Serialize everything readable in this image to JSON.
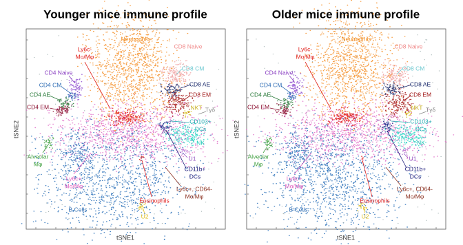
{
  "panels": [
    {
      "title": "Younger mice immune profile",
      "x_label": "tSNE1",
      "y_label": "tSNE2",
      "labels": [
        {
          "lines": [
            "Neutrophils"
          ]
        },
        {
          "lines": [
            "Ly6c-",
            "Mo/Mφ"
          ]
        },
        {
          "lines": [
            "CD8 Naive"
          ]
        },
        {
          "lines": [
            "CD8 CM"
          ]
        },
        {
          "lines": [
            "CD4 Naive"
          ]
        },
        {
          "lines": [
            "CD4 CM"
          ]
        },
        {
          "lines": [
            "CD8 AE"
          ]
        },
        {
          "lines": [
            "CD4 AE"
          ]
        },
        {
          "lines": [
            "CD8 EM"
          ]
        },
        {
          "lines": [
            "CD4 EM"
          ]
        },
        {
          "lines": [
            "NKT"
          ]
        },
        {
          "lines": [
            "Tγδ"
          ]
        },
        {
          "lines": [
            "CD103+",
            "DCs"
          ]
        },
        {
          "lines": [
            "NK"
          ]
        },
        {
          "lines": [
            "Alveolar",
            "Mφ"
          ]
        },
        {
          "lines": [
            "Ly6c+",
            "Mo/Mφ"
          ]
        },
        {
          "lines": [
            "U1"
          ]
        },
        {
          "lines": [
            "CD11b+",
            "DCs"
          ]
        },
        {
          "lines": [
            "Ly6c+, CD64-",
            "Mo/Mφ"
          ]
        },
        {
          "lines": [
            "Eosinophils"
          ]
        },
        {
          "lines": [
            "B Cells"
          ]
        },
        {
          "lines": [
            "U2"
          ]
        }
      ]
    },
    {
      "title": "Older mice immune profile",
      "x_label": "tSNE1",
      "y_label": "tSNE2",
      "labels": [
        {
          "lines": [
            "Neutrophils"
          ]
        },
        {
          "lines": [
            "Ly6c-",
            "Mo/Mφ"
          ]
        },
        {
          "lines": [
            "CD8 Naive"
          ]
        },
        {
          "lines": [
            "CD8 CM"
          ]
        },
        {
          "lines": [
            "CD4 Naive"
          ]
        },
        {
          "lines": [
            "CD4 CM"
          ]
        },
        {
          "lines": [
            "CD8 AE"
          ]
        },
        {
          "lines": [
            "CD4 AE"
          ]
        },
        {
          "lines": [
            "CD8 EM"
          ]
        },
        {
          "lines": [
            "CD4 EM"
          ]
        },
        {
          "lines": [
            "NKT"
          ]
        },
        {
          "lines": [
            "Tγδ"
          ]
        },
        {
          "lines": [
            "CD103+",
            "DCs"
          ]
        },
        {
          "lines": [
            "NK"
          ]
        },
        {
          "lines": [
            "Alveolar",
            "Mφ"
          ]
        },
        {
          "lines": [
            "Ly6c+",
            "Mo/Mφ"
          ]
        },
        {
          "lines": [
            "U1"
          ]
        },
        {
          "lines": [
            "CD11b+",
            "DCs"
          ]
        },
        {
          "lines": [
            "Ly6c+, CD64-",
            "Mo/Mφ"
          ]
        },
        {
          "lines": [
            "Eosinophils"
          ]
        },
        {
          "lines": [
            "B Cells"
          ]
        },
        {
          "lines": [
            "U2"
          ]
        }
      ]
    }
  ]
}
